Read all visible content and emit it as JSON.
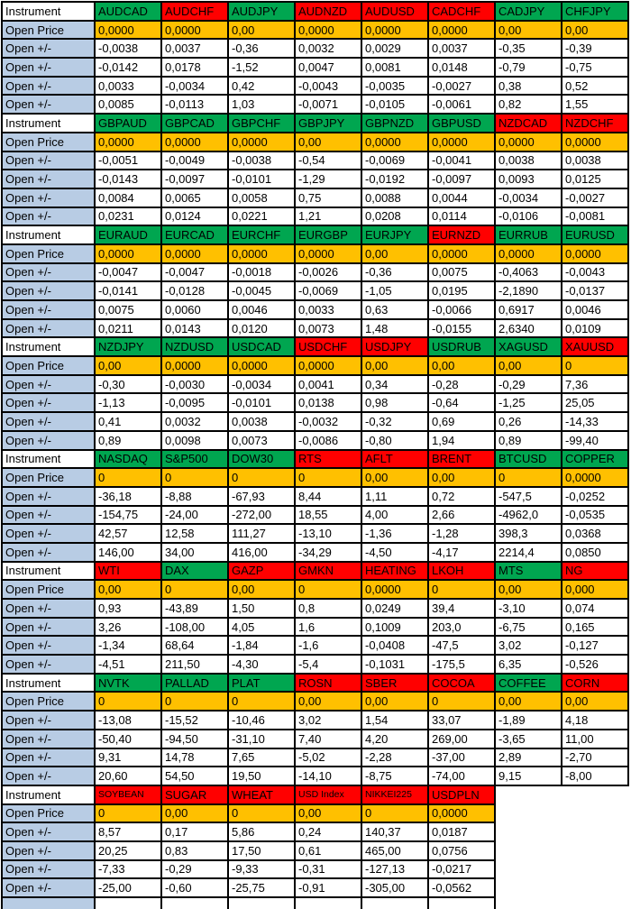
{
  "row_labels": {
    "instrument": "Instrument",
    "open_price": "Open Price",
    "open_change": "Open +/-"
  },
  "colors": {
    "header_green": "#00A650",
    "header_red": "#FF0000",
    "open_price_orange": "#FFC000",
    "row_label_blue": "#B8CCE4",
    "grid_border": "#000000"
  },
  "blocks": [
    {
      "instruments": [
        {
          "name": "AUDCAD",
          "color": "green",
          "open_price": "0,0000",
          "changes": [
            "-0,0038",
            "-0,0142",
            "0,0033",
            "0,0085"
          ]
        },
        {
          "name": "AUDCHF",
          "color": "red",
          "open_price": "0,0000",
          "changes": [
            "0,0037",
            "0,0178",
            "-0,0034",
            "-0,0113"
          ]
        },
        {
          "name": "AUDJPY",
          "color": "green",
          "open_price": "0,00",
          "changes": [
            "-0,36",
            "-1,52",
            "0,42",
            "1,03"
          ]
        },
        {
          "name": "AUDNZD",
          "color": "red",
          "open_price": "0,0000",
          "changes": [
            "0,0032",
            "0,0047",
            "-0,0043",
            "-0,0071"
          ]
        },
        {
          "name": "AUDUSD",
          "color": "red",
          "open_price": "0,0000",
          "changes": [
            "0,0029",
            "0,0081",
            "-0,0035",
            "-0,0105"
          ]
        },
        {
          "name": "CADCHF",
          "color": "red",
          "open_price": "0,0000",
          "changes": [
            "0,0037",
            "0,0148",
            "-0,0027",
            "-0,0061"
          ]
        },
        {
          "name": "CADJPY",
          "color": "green",
          "open_price": "0,00",
          "changes": [
            "-0,35",
            "-0,79",
            "0,38",
            "0,82"
          ]
        },
        {
          "name": "CHFJPY",
          "color": "green",
          "open_price": "0,00",
          "changes": [
            "-0,39",
            "-0,75",
            "0,52",
            "1,55"
          ]
        }
      ]
    },
    {
      "instruments": [
        {
          "name": "GBPAUD",
          "color": "green",
          "open_price": "0,0000",
          "changes": [
            "-0,0051",
            "-0,0143",
            "0,0084",
            "0,0231"
          ]
        },
        {
          "name": "GBPCAD",
          "color": "green",
          "open_price": "0,0000",
          "changes": [
            "-0,0049",
            "-0,0097",
            "0,0065",
            "0,0124"
          ]
        },
        {
          "name": "GBPCHF",
          "color": "green",
          "open_price": "0,0000",
          "changes": [
            "-0,0038",
            "-0,0101",
            "0,0058",
            "0,0221"
          ]
        },
        {
          "name": "GBPJPY",
          "color": "green",
          "open_price": "0,00",
          "changes": [
            "-0,54",
            "-1,29",
            "0,75",
            "1,21"
          ]
        },
        {
          "name": "GBPNZD",
          "color": "green",
          "open_price": "0,0000",
          "changes": [
            "-0,0069",
            "-0,0192",
            "0,0088",
            "0,0208"
          ]
        },
        {
          "name": "GBPUSD",
          "color": "green",
          "open_price": "0,0000",
          "changes": [
            "-0,0041",
            "-0,0097",
            "0,0044",
            "0,0114"
          ]
        },
        {
          "name": "NZDCAD",
          "color": "red",
          "open_price": "0,0000",
          "changes": [
            "0,0038",
            "0,0093",
            "-0,0034",
            "-0,0106"
          ]
        },
        {
          "name": "NZDCHF",
          "color": "red",
          "open_price": "0,0000",
          "changes": [
            "0,0038",
            "0,0125",
            "-0,0027",
            "-0,0081"
          ]
        }
      ]
    },
    {
      "instruments": [
        {
          "name": "EURAUD",
          "color": "green",
          "open_price": "0,0000",
          "changes": [
            "-0,0047",
            "-0,0141",
            "0,0075",
            "0,0211"
          ]
        },
        {
          "name": "EURCAD",
          "color": "green",
          "open_price": "0,0000",
          "changes": [
            "-0,0047",
            "-0,0128",
            "0,0060",
            "0,0143"
          ]
        },
        {
          "name": "EURCHF",
          "color": "green",
          "open_price": "0,0000",
          "changes": [
            "-0,0018",
            "-0,0045",
            "0,0046",
            "0,0120"
          ]
        },
        {
          "name": "EURGBP",
          "color": "green",
          "open_price": "0,0000",
          "changes": [
            "-0,0026",
            "-0,0069",
            "0,0033",
            "0,0073"
          ]
        },
        {
          "name": "EURJPY",
          "color": "green",
          "open_price": "0,00",
          "changes": [
            "-0,36",
            "-1,05",
            "0,63",
            "1,48"
          ]
        },
        {
          "name": "EURNZD",
          "color": "red",
          "open_price": "0,0000",
          "changes": [
            "0,0075",
            "0,0195",
            "-0,0066",
            "-0,0155"
          ]
        },
        {
          "name": "EURRUB",
          "color": "green",
          "open_price": "0,0000",
          "changes": [
            "-0,4063",
            "-2,1890",
            "0,6917",
            "2,6340"
          ]
        },
        {
          "name": "EURUSD",
          "color": "green",
          "open_price": "0,0000",
          "changes": [
            "-0,0043",
            "-0,0137",
            "0,0046",
            "0,0109"
          ]
        }
      ]
    },
    {
      "instruments": [
        {
          "name": "NZDJPY",
          "color": "green",
          "open_price": "0,00",
          "changes": [
            "-0,30",
            "-1,13",
            "0,41",
            "0,89"
          ]
        },
        {
          "name": "NZDUSD",
          "color": "green",
          "open_price": "0,0000",
          "changes": [
            "-0,0030",
            "-0,0095",
            "0,0032",
            "0,0098"
          ]
        },
        {
          "name": "USDCAD",
          "color": "green",
          "open_price": "0,0000",
          "changes": [
            "-0,0034",
            "-0,0101",
            "0,0038",
            "0,0073"
          ]
        },
        {
          "name": "USDCHF",
          "color": "red",
          "open_price": "0,0000",
          "changes": [
            "0,0041",
            "0,0138",
            "-0,0032",
            "-0,0086"
          ]
        },
        {
          "name": "USDJPY",
          "color": "red",
          "open_price": "0,00",
          "changes": [
            "0,34",
            "0,98",
            "-0,32",
            "-0,80"
          ]
        },
        {
          "name": "USDRUB",
          "color": "green",
          "open_price": "0,00",
          "changes": [
            "-0,28",
            "-0,64",
            "0,69",
            "1,94"
          ]
        },
        {
          "name": "XAGUSD",
          "color": "green",
          "open_price": "0,00",
          "changes": [
            "-0,29",
            "-1,25",
            "0,26",
            "0,89"
          ]
        },
        {
          "name": "XAUUSD",
          "color": "red",
          "open_price": "0",
          "changes": [
            "7,36",
            "25,05",
            "-14,33",
            "-99,40"
          ]
        }
      ]
    },
    {
      "instruments": [
        {
          "name": "NASDAQ",
          "color": "green",
          "open_price": "0",
          "changes": [
            "-36,18",
            "-154,75",
            "42,57",
            "146,00"
          ]
        },
        {
          "name": "S&P500",
          "color": "green",
          "open_price": "0",
          "changes": [
            "-8,88",
            "-24,00",
            "12,58",
            "34,00"
          ]
        },
        {
          "name": "DOW30",
          "color": "green",
          "open_price": "0",
          "changes": [
            "-67,93",
            "-272,00",
            "111,27",
            "416,00"
          ]
        },
        {
          "name": "RTS",
          "color": "red",
          "open_price": "0",
          "changes": [
            "8,44",
            "18,55",
            "-13,10",
            "-34,29"
          ]
        },
        {
          "name": "AFLT",
          "color": "red",
          "open_price": "0,00",
          "changes": [
            "1,11",
            "4,00",
            "-1,36",
            "-4,50"
          ]
        },
        {
          "name": "BRENT",
          "color": "red",
          "open_price": "0,00",
          "changes": [
            "0,72",
            "2,66",
            "-1,28",
            "-4,17"
          ]
        },
        {
          "name": "BTCUSD",
          "color": "green",
          "open_price": "0",
          "changes": [
            "-547,5",
            "-4962,0",
            "398,3",
            "2214,4"
          ]
        },
        {
          "name": "COPPER",
          "color": "green",
          "open_price": "0,0000",
          "changes": [
            "-0,0252",
            "-0,0535",
            "0,0368",
            "0,0850"
          ]
        }
      ]
    },
    {
      "instruments": [
        {
          "name": "WTI",
          "color": "red",
          "open_price": "0,00",
          "changes": [
            "0,93",
            "3,26",
            "-1,34",
            "-4,51"
          ]
        },
        {
          "name": "DAX",
          "color": "green",
          "open_price": "0",
          "changes": [
            "-43,89",
            "-108,00",
            "68,64",
            "211,50"
          ]
        },
        {
          "name": "GAZP",
          "color": "red",
          "open_price": "0,00",
          "changes": [
            "1,50",
            "4,05",
            "-1,84",
            "-4,30"
          ]
        },
        {
          "name": "GMKN",
          "color": "red",
          "open_price": "0",
          "changes": [
            "0,8",
            "1,6",
            "-1,6",
            "-5,4"
          ]
        },
        {
          "name": "HEATING",
          "color": "red",
          "open_price": "0,0000",
          "changes": [
            "0,0249",
            "0,1009",
            "-0,0408",
            "-0,1031"
          ]
        },
        {
          "name": "LKOH",
          "color": "red",
          "open_price": "0",
          "changes": [
            "39,4",
            "203,0",
            "-47,5",
            "-175,5"
          ]
        },
        {
          "name": "MTS",
          "color": "green",
          "open_price": "0,00",
          "changes": [
            "-3,10",
            "-6,75",
            "3,02",
            "6,35"
          ]
        },
        {
          "name": "NG",
          "color": "red",
          "open_price": "0,000",
          "changes": [
            "0,074",
            "0,165",
            "-0,127",
            "-0,526"
          ]
        }
      ]
    },
    {
      "instruments": [
        {
          "name": "NVTK",
          "color": "green",
          "open_price": "0",
          "changes": [
            "-13,08",
            "-50,40",
            "9,31",
            "20,60"
          ]
        },
        {
          "name": "PALLAD",
          "color": "green",
          "open_price": "0",
          "changes": [
            "-15,52",
            "-94,50",
            "14,78",
            "54,50"
          ]
        },
        {
          "name": "PLAT",
          "color": "green",
          "open_price": "0",
          "changes": [
            "-10,46",
            "-31,10",
            "7,65",
            "19,50"
          ]
        },
        {
          "name": "ROSN",
          "color": "red",
          "open_price": "0,00",
          "changes": [
            "3,02",
            "7,40",
            "-5,02",
            "-14,10"
          ]
        },
        {
          "name": "SBER",
          "color": "red",
          "open_price": "0,00",
          "changes": [
            "1,54",
            "4,20",
            "-2,28",
            "-8,75"
          ]
        },
        {
          "name": "COCOA",
          "color": "red",
          "open_price": "0",
          "changes": [
            "33,07",
            "269,00",
            "-37,00",
            "-74,00"
          ]
        },
        {
          "name": "COFFEE",
          "color": "green",
          "open_price": "0,00",
          "changes": [
            "-1,89",
            "-3,65",
            "2,89",
            "9,15"
          ]
        },
        {
          "name": "CORN",
          "color": "red",
          "open_price": "0,00",
          "changes": [
            "4,18",
            "11,00",
            "-2,70",
            "-8,00"
          ]
        }
      ]
    },
    {
      "instruments": [
        {
          "name": "SOYBEAN",
          "color": "red",
          "small": true,
          "open_price": "0",
          "changes": [
            "8,57",
            "20,25",
            "-7,33",
            "-25,00"
          ]
        },
        {
          "name": "SUGAR",
          "color": "red",
          "open_price": "0,00",
          "changes": [
            "0,17",
            "0,83",
            "-0,29",
            "-0,60"
          ]
        },
        {
          "name": "WHEAT",
          "color": "red",
          "open_price": "0",
          "changes": [
            "5,86",
            "17,50",
            "-9,33",
            "-25,75"
          ]
        },
        {
          "name": "USD Index",
          "color": "red",
          "small": true,
          "open_price": "0,00",
          "changes": [
            "0,24",
            "0,61",
            "-0,31",
            "-0,91"
          ]
        },
        {
          "name": "NIKKEI225",
          "color": "red",
          "small": true,
          "open_price": "0",
          "changes": [
            "140,37",
            "465,00",
            "-127,13",
            "-305,00"
          ]
        },
        {
          "name": "USDPLN",
          "color": "red",
          "open_price": "0,0000",
          "changes": [
            "0,0187",
            "0,0756",
            "-0,0217",
            "-0,0562"
          ]
        }
      ]
    }
  ]
}
